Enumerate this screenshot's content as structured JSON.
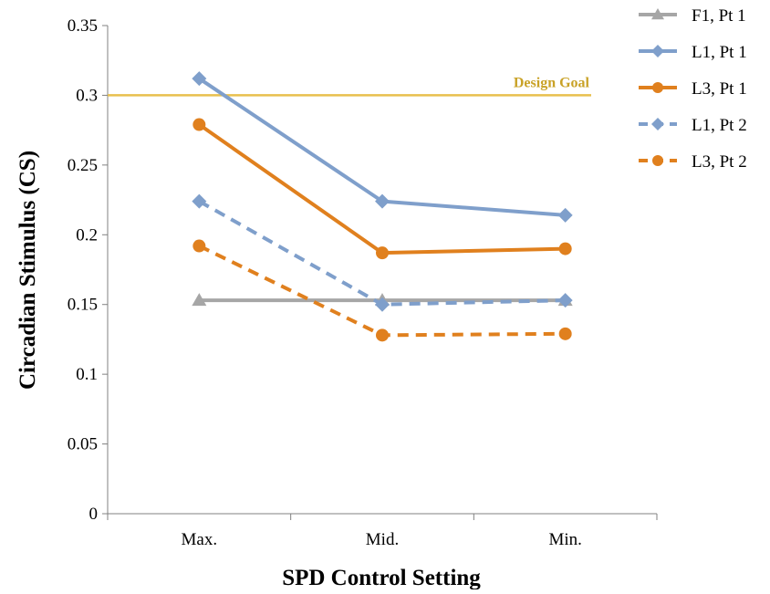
{
  "chart_data": {
    "type": "line",
    "title": "",
    "xlabel": "SPD Control Setting",
    "ylabel": "Circadian Stimulus (CS)",
    "categories": [
      "Max.",
      "Mid.",
      "Min."
    ],
    "ylim": [
      0,
      0.35
    ],
    "yticks": [
      0,
      0.05,
      0.1,
      0.15,
      0.2,
      0.25,
      0.3,
      0.35
    ],
    "ytick_labels": [
      "0",
      "0.05",
      "0.1",
      "0.15",
      "0.2",
      "0.25",
      "0.3",
      "0.35"
    ],
    "grid": false,
    "legend_position": "right",
    "reference_line": {
      "label": "Design Goal",
      "value": 0.3,
      "color": "#E8C04E",
      "label_color": "#C9A227"
    },
    "series": [
      {
        "name": "F1, Pt 1",
        "values": [
          0.153,
          0.153,
          0.153
        ],
        "color": "#A6A6A6",
        "dash": "solid",
        "marker": "triangle"
      },
      {
        "name": "L1, Pt 1",
        "values": [
          0.312,
          0.224,
          0.214
        ],
        "color": "#7F9FCB",
        "dash": "solid",
        "marker": "diamond"
      },
      {
        "name": "L3, Pt 1",
        "values": [
          0.279,
          0.187,
          0.19
        ],
        "color": "#E0801E",
        "dash": "solid",
        "marker": "circle"
      },
      {
        "name": "L1, Pt 2",
        "values": [
          0.224,
          0.15,
          0.153
        ],
        "color": "#7F9FCB",
        "dash": "dashed",
        "marker": "diamond"
      },
      {
        "name": "L3, Pt 2",
        "values": [
          0.192,
          0.128,
          0.129
        ],
        "color": "#E0801E",
        "dash": "dashed",
        "marker": "circle"
      }
    ]
  }
}
